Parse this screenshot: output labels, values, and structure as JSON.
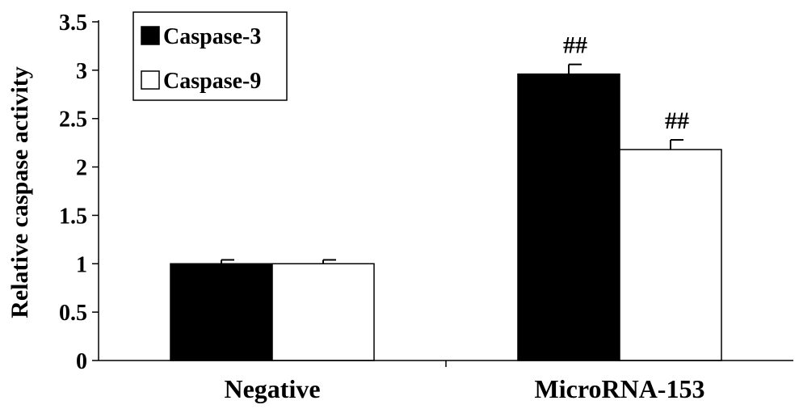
{
  "chart_data": {
    "type": "bar",
    "title": "",
    "xlabel": "",
    "ylabel": "Relative caspase activity",
    "ylim": [
      0,
      3.5
    ],
    "yticks": [
      "0",
      "0.5",
      "1",
      "1.5",
      "2",
      "2.5",
      "3",
      "3.5"
    ],
    "categories": [
      "Negative",
      "MicroRNA-153"
    ],
    "series": [
      {
        "name": "Caspase-3",
        "color": "#000000",
        "values": [
          1.0,
          2.96
        ],
        "errors": [
          0.04,
          0.1
        ],
        "annotations": [
          "",
          "##"
        ]
      },
      {
        "name": "Caspase-9",
        "color": "#ffffff",
        "values": [
          1.0,
          2.18
        ],
        "errors": [
          0.04,
          0.1
        ],
        "annotations": [
          "",
          "##"
        ]
      }
    ],
    "legend_position": "top-left",
    "grid": false
  }
}
